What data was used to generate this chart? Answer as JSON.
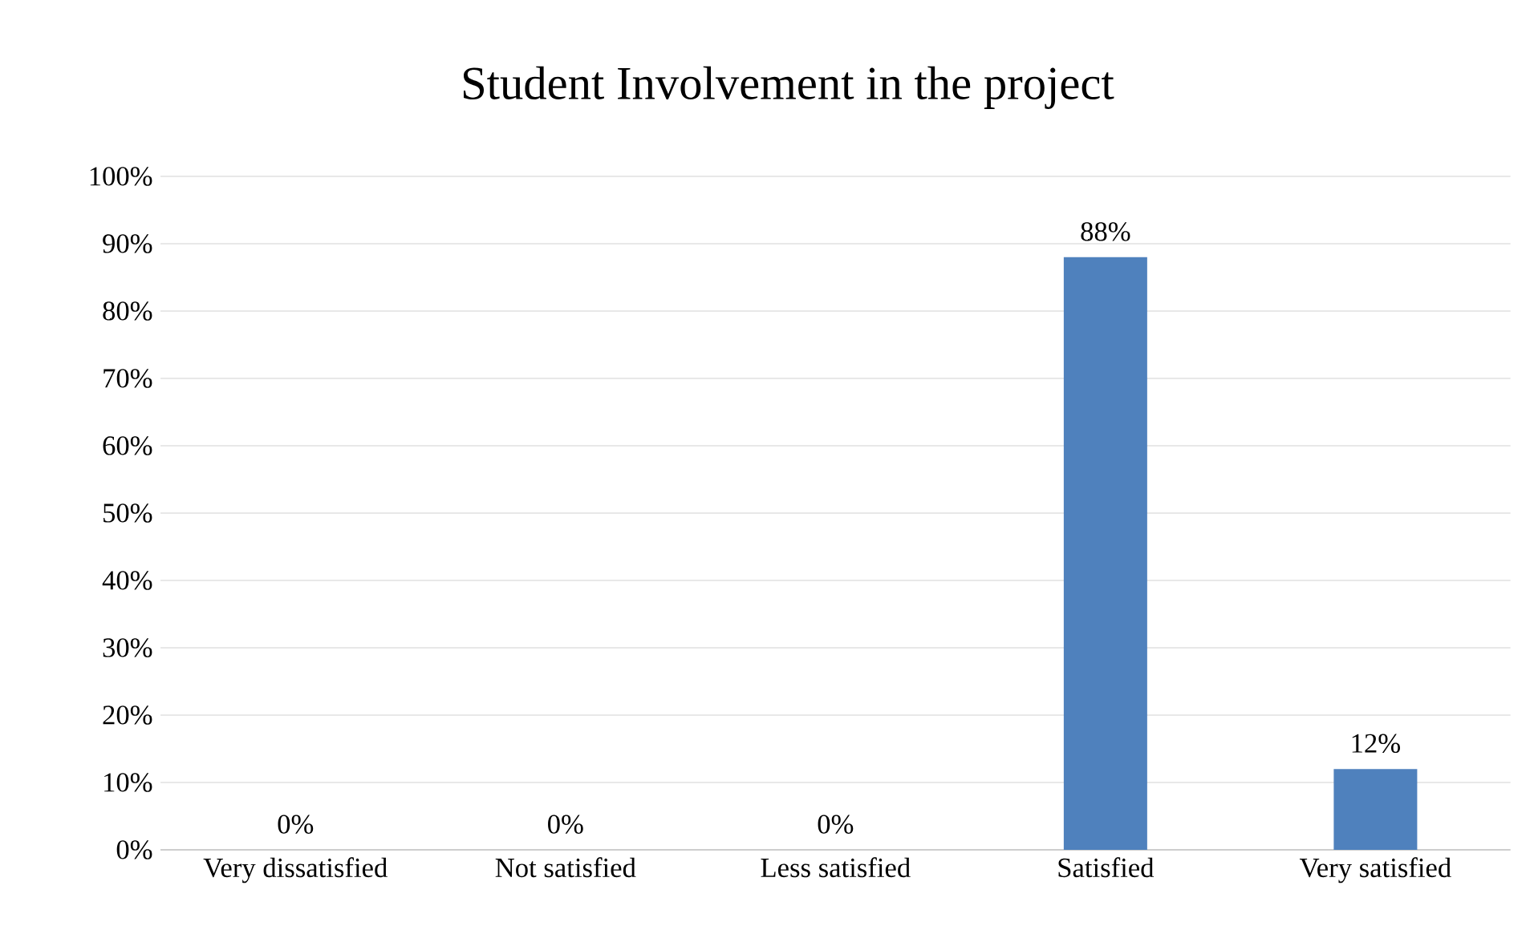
{
  "chart_data": {
    "type": "bar",
    "title": "Student Involvement in the project",
    "categories": [
      "Very dissatisfied",
      "Not satisfied",
      "Less satisfied",
      "Satisfied",
      "Very satisfied"
    ],
    "values": [
      0,
      0,
      0,
      88,
      12
    ],
    "value_labels": [
      "0%",
      "0%",
      "0%",
      "88%",
      "12%"
    ],
    "color": "#4f81bd",
    "ylim": [
      0,
      100
    ],
    "yticks": [
      {
        "value": 0,
        "label": "0%"
      },
      {
        "value": 10,
        "label": "10%"
      },
      {
        "value": 20,
        "label": "20%"
      },
      {
        "value": 30,
        "label": "30%"
      },
      {
        "value": 40,
        "label": "40%"
      },
      {
        "value": 50,
        "label": "50%"
      },
      {
        "value": 60,
        "label": "60%"
      },
      {
        "value": 70,
        "label": "70%"
      },
      {
        "value": 80,
        "label": "80%"
      },
      {
        "value": 90,
        "label": "90%"
      },
      {
        "value": 100,
        "label": "100%"
      }
    ],
    "grid": "y"
  }
}
